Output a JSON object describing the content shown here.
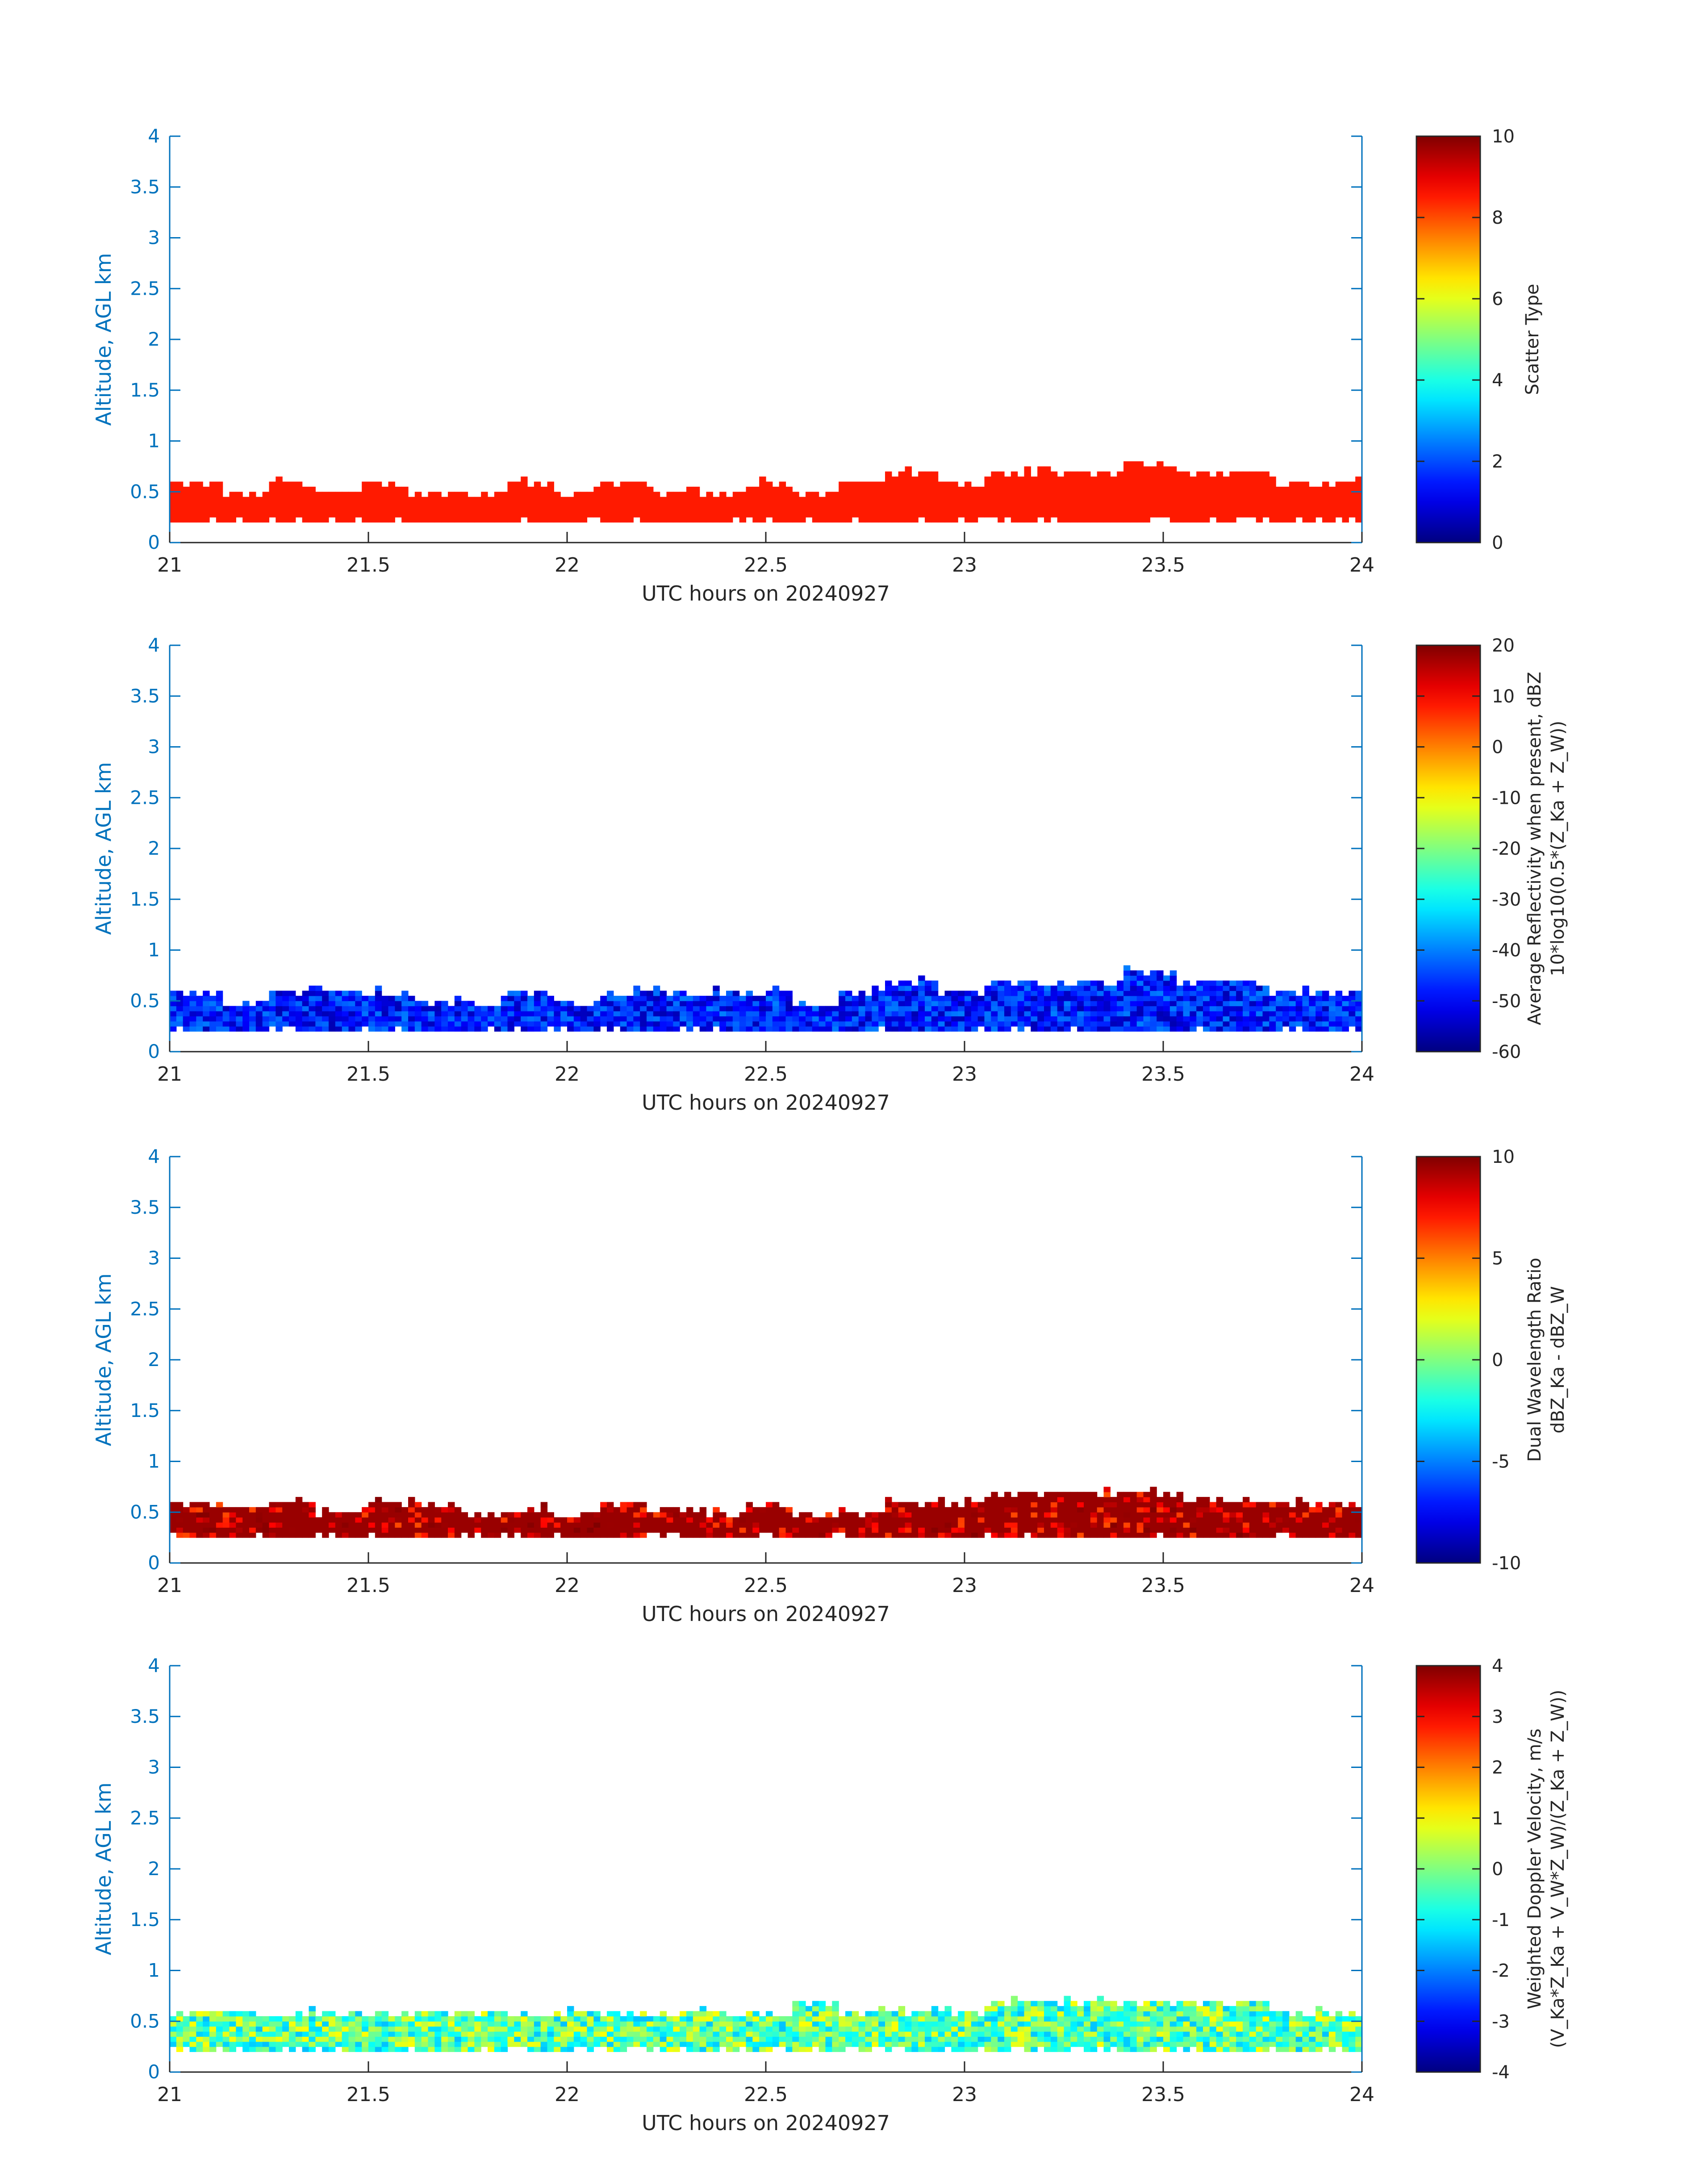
{
  "chart_data": [
    {
      "type": "heatmap",
      "xlabel": "UTC hours on 20240927",
      "ylabel": "Altitude, AGL km",
      "xlim": [
        21,
        24
      ],
      "ylim": [
        0,
        4
      ],
      "xticks": [
        "21",
        "21.5",
        "22",
        "22.5",
        "23",
        "23.5",
        "24"
      ],
      "yticks": [
        "0",
        "0.5",
        "1",
        "1.5",
        "2",
        "2.5",
        "3",
        "3.5",
        "4"
      ],
      "colorbar": {
        "label_lines": [
          "Scatter Type"
        ],
        "clim": [
          0,
          10
        ],
        "ticks": [
          "0",
          "2",
          "4",
          "6",
          "8",
          "10"
        ],
        "colormap": "jet"
      },
      "layer": {
        "base_km": 0.2,
        "top_km": [
          0.6,
          0.5,
          0.6,
          0.5,
          0.6,
          0.5,
          0.5,
          0.6,
          0.5,
          0.6,
          0.5,
          0.5,
          0.6,
          0.5,
          0.6,
          0.7,
          0.6,
          0.7,
          0.7,
          0.7,
          0.8,
          0.7,
          0.7,
          0.6,
          0.6
        ],
        "value": 8.5
      },
      "notes": "Cloud layer between ~0.2 and ~0.6 km, uniform scatter type ~8.5"
    },
    {
      "type": "heatmap",
      "xlabel": "UTC hours on 20240927",
      "ylabel": "Altitude, AGL km",
      "xlim": [
        21,
        24
      ],
      "ylim": [
        0,
        4
      ],
      "xticks": [
        "21",
        "21.5",
        "22",
        "22.5",
        "23",
        "23.5",
        "24"
      ],
      "yticks": [
        "0",
        "0.5",
        "1",
        "1.5",
        "2",
        "2.5",
        "3",
        "3.5",
        "4"
      ],
      "colorbar": {
        "label_lines": [
          "Average Reflectivity when present, dBZ",
          "10*log10(0.5*(Z_Ka + Z_W))"
        ],
        "clim": [
          -60,
          20
        ],
        "ticks": [
          "-60",
          "-50",
          "-40",
          "-30",
          "-20",
          "-10",
          "0",
          "10",
          "20"
        ],
        "colormap": "jet"
      },
      "layer": {
        "base_km": 0.2,
        "top_km": [
          0.6,
          0.5,
          0.6,
          0.6,
          0.6,
          0.5,
          0.5,
          0.6,
          0.5,
          0.6,
          0.6,
          0.6,
          0.6,
          0.5,
          0.6,
          0.7,
          0.6,
          0.7,
          0.7,
          0.7,
          0.8,
          0.7,
          0.7,
          0.6,
          0.6
        ],
        "value_range": [
          -56,
          -40
        ]
      },
      "notes": "Low reflectivity layer (~-55 to -40 dBZ) between ~0.2 and ~0.6 km"
    },
    {
      "type": "heatmap",
      "xlabel": "UTC hours on 20240927",
      "ylabel": "Altitude, AGL km",
      "xlim": [
        21,
        24
      ],
      "ylim": [
        0,
        4
      ],
      "xticks": [
        "21",
        "21.5",
        "22",
        "22.5",
        "23",
        "23.5",
        "24"
      ],
      "yticks": [
        "0",
        "0.5",
        "1",
        "1.5",
        "2",
        "2.5",
        "3",
        "3.5",
        "4"
      ],
      "colorbar": {
        "label_lines": [
          "Dual Wavelength Ratio",
          "dBZ_Ka - dBZ_W"
        ],
        "clim": [
          -10,
          10
        ],
        "ticks": [
          "-10",
          "-5",
          "0",
          "5",
          "10"
        ],
        "colormap": "jet"
      },
      "layer": {
        "base_km": 0.25,
        "top_km": [
          0.6,
          0.55,
          0.6,
          0.5,
          0.6,
          0.6,
          0.5,
          0.55,
          0.5,
          0.6,
          0.55,
          0.5,
          0.6,
          0.5,
          0.5,
          0.6,
          0.6,
          0.7,
          0.7,
          0.7,
          0.7,
          0.65,
          0.6,
          0.6,
          0.6
        ],
        "value_range": [
          6,
          10
        ]
      },
      "notes": "DWR mostly ~8-10 dB between ~0.25 and ~0.6 km"
    },
    {
      "type": "heatmap",
      "xlabel": "UTC hours on 20240927",
      "ylabel": "Altitude, AGL km",
      "xlim": [
        21,
        24
      ],
      "ylim": [
        0,
        4
      ],
      "xticks": [
        "21",
        "21.5",
        "22",
        "22.5",
        "23",
        "23.5",
        "24"
      ],
      "yticks": [
        "0",
        "0.5",
        "1",
        "1.5",
        "2",
        "2.5",
        "3",
        "3.5",
        "4"
      ],
      "colorbar": {
        "label_lines": [
          "Weighted Doppler Velocity, m/s",
          "(V_Ka*Z_Ka + V_W*Z_W)/(Z_Ka + Z_W))"
        ],
        "clim": [
          -4,
          4
        ],
        "ticks": [
          "-4",
          "-3",
          "-2",
          "-1",
          "0",
          "1",
          "2",
          "3",
          "4"
        ],
        "colormap": "jet"
      },
      "layer": {
        "base_km": 0.2,
        "top_km": [
          0.6,
          0.6,
          0.6,
          0.6,
          0.6,
          0.6,
          0.6,
          0.6,
          0.6,
          0.6,
          0.6,
          0.6,
          0.6,
          0.7,
          0.6,
          0.6,
          0.6,
          0.7,
          0.7,
          0.7,
          0.7,
          0.7,
          0.7,
          0.6,
          0.6
        ],
        "value_range": [
          -1.5,
          1
        ]
      },
      "notes": "Doppler velocity ~-1.5 to 1 m/s between ~0.2 and ~0.6 km"
    }
  ]
}
